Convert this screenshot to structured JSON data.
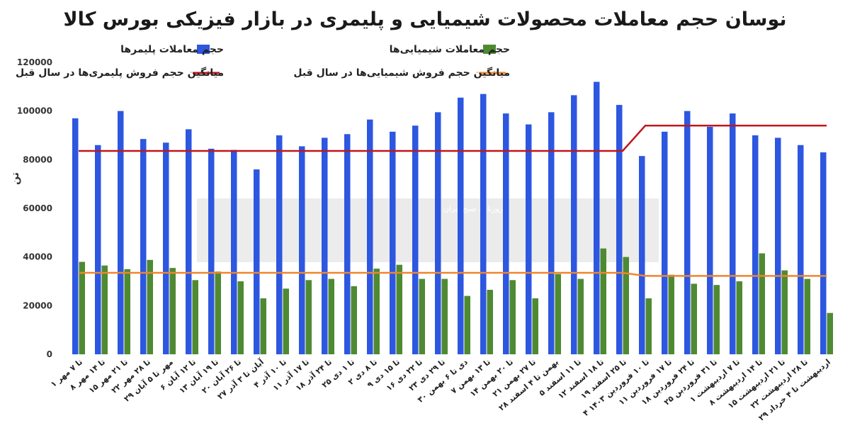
{
  "chart_data": {
    "type": "bar",
    "title": "نوسان حجم معاملات محصولات شیمیایی و پلیمری در بازار فیزیکی بورس کالا",
    "ylabel": "تن",
    "ylim": [
      0,
      120000
    ],
    "yticks": [
      "0",
      "20000",
      "40000",
      "60000",
      "80000",
      "100000",
      "120000"
    ],
    "categories": [
      "۱ تا ۷ مهر",
      "۸ تا ۱۴ مهر",
      "۱۵ تا ۲۱ مهر",
      "۲۲ تا ۲۸ مهر",
      "۲۹ مهر تا ۵ آبان",
      "۶ تا ۱۲ آبان",
      "۱۳ تا ۱۹ آبان",
      "۲۰ تا ۲۶ آبان",
      "۲۷ آبان تا ۳ آذر",
      "۴ تا ۱۰ آذر",
      "۱۱ تا ۱۷ آذر",
      "۱۸ تا ۲۴ آذر",
      "۲۵ تا ۱ دی",
      "۲ تا ۸ دی",
      "۹ تا ۱۵ دی",
      "۱۶ تا ۲۲ دی",
      "۲۳ تا ۲۹ دی",
      "۳۰ دی تا ۶ بهمن",
      "۷ تا ۱۳ بهمن",
      "۱۴ تا ۲۰ بهمن",
      "۲۱ تا ۲۷ بهمن",
      "۲۸ بهمن تا ۴ اسفند",
      "۵ تا ۱۱ اسفند",
      "۱۲ تا ۱۸ اسفند",
      "۱۹ تا ۲۵ اسفند",
      "۴ تا ۱۰ فروردین ۱۴۰۳",
      "۱۱ تا ۱۷ فروردین",
      "۱۸ تا ۲۴ فروردین",
      "۲۵ تا ۳۱ فروردین",
      "۱ تا ۷ اردیبهشت",
      "۸ تا ۱۴ اردیبهشت",
      "۱۵ تا ۲۱ اردیبهشت",
      "۲۲ تا ۲۸ اردیبهشت",
      "۲۹ اردیبهشت تا ۴ خرداد"
    ],
    "series": [
      {
        "name": "حجم معاملات پلیمرها",
        "color": "#2d57e0",
        "values": [
          97000,
          86000,
          100000,
          88500,
          87000,
          92500,
          84500,
          84000,
          76000,
          90000,
          85500,
          89000,
          90500,
          96500,
          91500,
          94000,
          99500,
          105500,
          107000,
          99000,
          94500,
          99500,
          106500,
          112000,
          102500,
          81500,
          91500,
          100000,
          93500,
          99000,
          90000,
          89000,
          86000,
          83000
        ]
      },
      {
        "name": "حجم معاملات شیمیایی‌ها",
        "color": "#4f8a33",
        "values": [
          38000,
          36500,
          35000,
          38800,
          35500,
          30500,
          34000,
          30000,
          23000,
          27000,
          30500,
          31000,
          28000,
          35200,
          36800,
          31000,
          31000,
          24000,
          26500,
          30500,
          23000,
          33000,
          31000,
          43500,
          40000,
          23000,
          32700,
          29000,
          28500,
          30000,
          41500,
          34500,
          31000,
          17000
        ]
      },
      {
        "name": "میانگین حجم فروش پلیمری‌ها در سال قبل",
        "color": "#c0171c",
        "type": "line",
        "values": [
          83600,
          83600,
          83600,
          83600,
          83600,
          83600,
          83600,
          83600,
          83600,
          83600,
          83600,
          83600,
          83600,
          83600,
          83600,
          83600,
          83600,
          83600,
          83600,
          83600,
          83600,
          83600,
          83600,
          83600,
          83600,
          94000,
          94000,
          94000,
          94000,
          94000,
          94000,
          94000,
          94000,
          94000
        ]
      },
      {
        "name": "میانگین حجم فروش شیمیایی‌ها در سال قبل",
        "color": "#f0852d",
        "type": "line",
        "values": [
          33500,
          33500,
          33500,
          33500,
          33500,
          33500,
          33500,
          33500,
          33500,
          33500,
          33500,
          33500,
          33500,
          33500,
          33500,
          33500,
          33500,
          33500,
          33500,
          33500,
          33500,
          33500,
          33500,
          33500,
          33500,
          32200,
          32200,
          32200,
          32200,
          32200,
          32200,
          32200,
          32200,
          32200
        ]
      }
    ],
    "legend_position": "top",
    "grid": false,
    "watermark": "دنیای اقتصاد — روزنامه صبح ایران"
  }
}
